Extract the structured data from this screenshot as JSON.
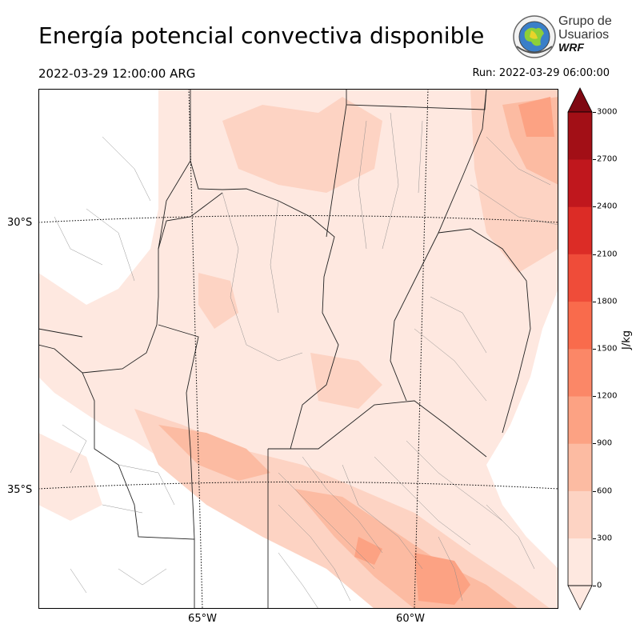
{
  "title": "Energía potencial convectiva disponible",
  "valid_time": "2022-03-29 12:00:00 ARG",
  "run_time": "Run: 2022-03-29 06:00:00",
  "logo": {
    "line1": "Grupo de",
    "line2": "Usuarios",
    "line3": "WRF"
  },
  "axes": {
    "lat_labels": [
      "30°S",
      "35°S"
    ],
    "lon_labels": [
      "65°W",
      "60°W"
    ]
  },
  "colorbar": {
    "unit": "J/kg",
    "ticks": [
      "0",
      "300",
      "600",
      "900",
      "1200",
      "1500",
      "1800",
      "2100",
      "2400",
      "2700",
      "3000"
    ],
    "colors": [
      "#fee8e0",
      "#fdd3c3",
      "#fcbba2",
      "#fca283",
      "#fb8767",
      "#f96b4c",
      "#ef4c39",
      "#dc2c26",
      "#c0171d",
      "#a20f16",
      "#7f0812"
    ]
  }
}
